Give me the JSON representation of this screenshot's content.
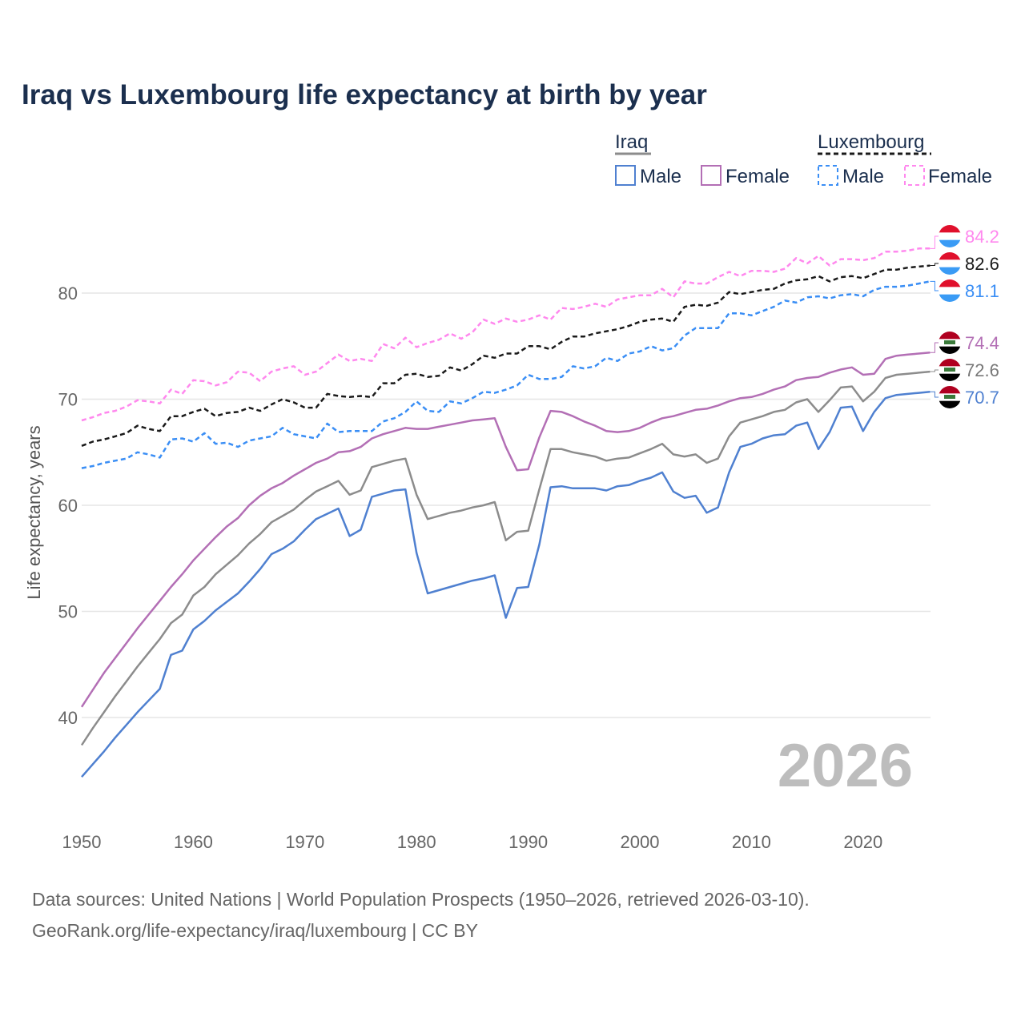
{
  "title": "Iraq vs Luxembourg life expectancy at birth by year",
  "watermark_year": "2026",
  "source_line1": "Data sources: United Nations | World Population Prospects (1950–2026, retrieved 2026-03-10).",
  "source_line2": "GeoRank.org/life-expectancy/iraq/luxembourg | CC BY",
  "legend": {
    "groups": [
      {
        "name": "Iraq",
        "items": [
          "Male",
          "Female"
        ]
      },
      {
        "name": "Luxembourg",
        "items": [
          "Male",
          "Female"
        ]
      }
    ]
  },
  "chart_data": {
    "type": "line",
    "title": "Iraq vs Luxembourg life expectancy at birth by year",
    "xlabel": "",
    "ylabel": "Life expectancy, years",
    "xlim": [
      1950,
      2026
    ],
    "ylim": [
      33,
      86
    ],
    "x_ticks": [
      "1950",
      "1960",
      "1970",
      "1980",
      "1990",
      "2000",
      "2010",
      "2020"
    ],
    "y_ticks": [
      "40",
      "50",
      "60",
      "70",
      "80"
    ],
    "grid": true,
    "legend_position": "top-right",
    "x_start": 1950,
    "series": [
      {
        "name": "Luxembourg Female",
        "color": "#ff88ee",
        "dashed": true,
        "end_label": "84.2",
        "flag": "luxembourg",
        "values": [
          68.0,
          68.3,
          68.7,
          68.9,
          69.3,
          69.9,
          69.8,
          69.6,
          70.9,
          70.5,
          71.8,
          71.7,
          71.3,
          71.6,
          72.6,
          72.5,
          71.7,
          72.6,
          72.9,
          73.1,
          72.3,
          72.6,
          73.4,
          74.2,
          73.6,
          73.8,
          73.6,
          75.2,
          74.8,
          75.8,
          74.9,
          75.3,
          75.6,
          76.2,
          75.7,
          76.3,
          77.5,
          77.1,
          77.6,
          77.3,
          77.5,
          77.9,
          77.5,
          78.6,
          78.5,
          78.7,
          79.0,
          78.7,
          79.4,
          79.6,
          79.8,
          79.8,
          80.4,
          79.6,
          81.1,
          80.9,
          80.9,
          81.5,
          82.0,
          81.6,
          82.1,
          82.1,
          82.0,
          82.3,
          83.3,
          82.8,
          83.5,
          82.6,
          83.2,
          83.2,
          83.1,
          83.3,
          83.9,
          83.9,
          84.0,
          84.2,
          84.2
        ]
      },
      {
        "name": "Luxembourg",
        "color": "#1a1a1a",
        "dashed": true,
        "end_label": "82.6",
        "flag": "luxembourg",
        "values": [
          65.6,
          66.0,
          66.2,
          66.5,
          66.8,
          67.5,
          67.2,
          67.0,
          68.4,
          68.4,
          68.8,
          69.1,
          68.4,
          68.7,
          68.8,
          69.2,
          68.9,
          69.5,
          70.0,
          69.7,
          69.2,
          69.2,
          70.5,
          70.3,
          70.2,
          70.3,
          70.2,
          71.5,
          71.5,
          72.3,
          72.4,
          72.1,
          72.2,
          73.0,
          72.7,
          73.3,
          74.1,
          73.9,
          74.3,
          74.3,
          75.0,
          75.0,
          74.7,
          75.4,
          75.9,
          75.9,
          76.2,
          76.4,
          76.6,
          76.9,
          77.3,
          77.5,
          77.6,
          77.3,
          78.7,
          78.9,
          78.8,
          79.1,
          80.1,
          79.9,
          80.1,
          80.3,
          80.4,
          80.9,
          81.2,
          81.3,
          81.6,
          81.1,
          81.5,
          81.6,
          81.4,
          81.8,
          82.2,
          82.2,
          82.4,
          82.5,
          82.6
        ]
      },
      {
        "name": "Luxembourg Male",
        "color": "#3a8ef5",
        "dashed": true,
        "end_label": "81.1",
        "flag": "luxembourg",
        "values": [
          63.5,
          63.7,
          64.0,
          64.2,
          64.4,
          65.0,
          64.8,
          64.5,
          66.2,
          66.3,
          66.0,
          66.8,
          65.8,
          65.9,
          65.5,
          66.1,
          66.3,
          66.5,
          67.3,
          66.7,
          66.5,
          66.3,
          67.7,
          66.9,
          67.0,
          67.0,
          67.0,
          67.9,
          68.2,
          68.8,
          69.8,
          68.9,
          68.8,
          69.8,
          69.6,
          70.1,
          70.7,
          70.6,
          70.9,
          71.3,
          72.3,
          71.9,
          71.9,
          72.1,
          73.1,
          72.9,
          73.1,
          73.9,
          73.6,
          74.3,
          74.5,
          75.0,
          74.6,
          74.8,
          76.0,
          76.7,
          76.7,
          76.7,
          78.1,
          78.1,
          77.9,
          78.3,
          78.7,
          79.3,
          79.1,
          79.6,
          79.7,
          79.5,
          79.8,
          79.9,
          79.7,
          80.3,
          80.6,
          80.6,
          80.7,
          80.9,
          81.1
        ]
      },
      {
        "name": "Iraq Female",
        "color": "#b36fb5",
        "dashed": false,
        "end_label": "74.4",
        "flag": "iraq",
        "values": [
          41.0,
          42.6,
          44.2,
          45.6,
          47.0,
          48.4,
          49.7,
          51.0,
          52.3,
          53.5,
          54.8,
          55.9,
          57.0,
          58.0,
          58.8,
          60.0,
          60.9,
          61.6,
          62.1,
          62.8,
          63.4,
          64.0,
          64.4,
          65.0,
          65.1,
          65.5,
          66.3,
          66.7,
          67.0,
          67.3,
          67.2,
          67.2,
          67.4,
          67.6,
          67.8,
          68.0,
          68.1,
          68.2,
          65.5,
          63.3,
          63.4,
          66.4,
          68.9,
          68.8,
          68.4,
          67.9,
          67.5,
          67.0,
          66.9,
          67.0,
          67.3,
          67.8,
          68.2,
          68.4,
          68.7,
          69.0,
          69.1,
          69.4,
          69.8,
          70.1,
          70.2,
          70.5,
          70.9,
          71.2,
          71.8,
          72.0,
          72.1,
          72.5,
          72.8,
          73.0,
          72.3,
          72.4,
          73.8,
          74.1,
          74.2,
          74.3,
          74.4
        ]
      },
      {
        "name": "Iraq",
        "color": "#8c8c8c",
        "dashed": false,
        "end_label": "72.6",
        "flag": "iraq",
        "values": [
          37.4,
          39.0,
          40.5,
          42.0,
          43.4,
          44.8,
          46.1,
          47.4,
          48.9,
          49.7,
          51.5,
          52.3,
          53.5,
          54.4,
          55.3,
          56.4,
          57.3,
          58.4,
          59.0,
          59.6,
          60.5,
          61.3,
          61.8,
          62.3,
          61.0,
          61.4,
          63.6,
          63.9,
          64.2,
          64.4,
          61.0,
          58.7,
          59.0,
          59.3,
          59.5,
          59.8,
          60.0,
          60.3,
          56.7,
          57.5,
          57.6,
          61.5,
          65.3,
          65.3,
          65.0,
          64.8,
          64.6,
          64.2,
          64.4,
          64.5,
          64.9,
          65.3,
          65.8,
          64.8,
          64.6,
          64.8,
          64.0,
          64.4,
          66.5,
          67.8,
          68.1,
          68.4,
          68.8,
          69.0,
          69.7,
          70.0,
          68.8,
          69.9,
          71.1,
          71.2,
          69.8,
          70.7,
          72.0,
          72.3,
          72.4,
          72.5,
          72.6
        ]
      },
      {
        "name": "Iraq Male",
        "color": "#4f80d0",
        "dashed": false,
        "end_label": "70.7",
        "flag": "iraq",
        "values": [
          34.4,
          35.6,
          36.8,
          38.1,
          39.3,
          40.5,
          41.6,
          42.7,
          45.9,
          46.3,
          48.3,
          49.1,
          50.1,
          50.9,
          51.7,
          52.8,
          54.0,
          55.4,
          55.9,
          56.6,
          57.7,
          58.7,
          59.2,
          59.7,
          57.1,
          57.7,
          60.8,
          61.1,
          61.4,
          61.5,
          55.5,
          51.7,
          52.0,
          52.3,
          52.6,
          52.9,
          53.1,
          53.4,
          49.4,
          52.2,
          52.3,
          56.3,
          61.7,
          61.8,
          61.6,
          61.6,
          61.6,
          61.4,
          61.8,
          61.9,
          62.3,
          62.6,
          63.1,
          61.3,
          60.7,
          60.9,
          59.3,
          59.8,
          63.1,
          65.5,
          65.8,
          66.3,
          66.6,
          66.7,
          67.5,
          67.8,
          65.3,
          66.9,
          69.2,
          69.3,
          67.0,
          68.8,
          70.1,
          70.4,
          70.5,
          70.6,
          70.7
        ]
      }
    ]
  }
}
